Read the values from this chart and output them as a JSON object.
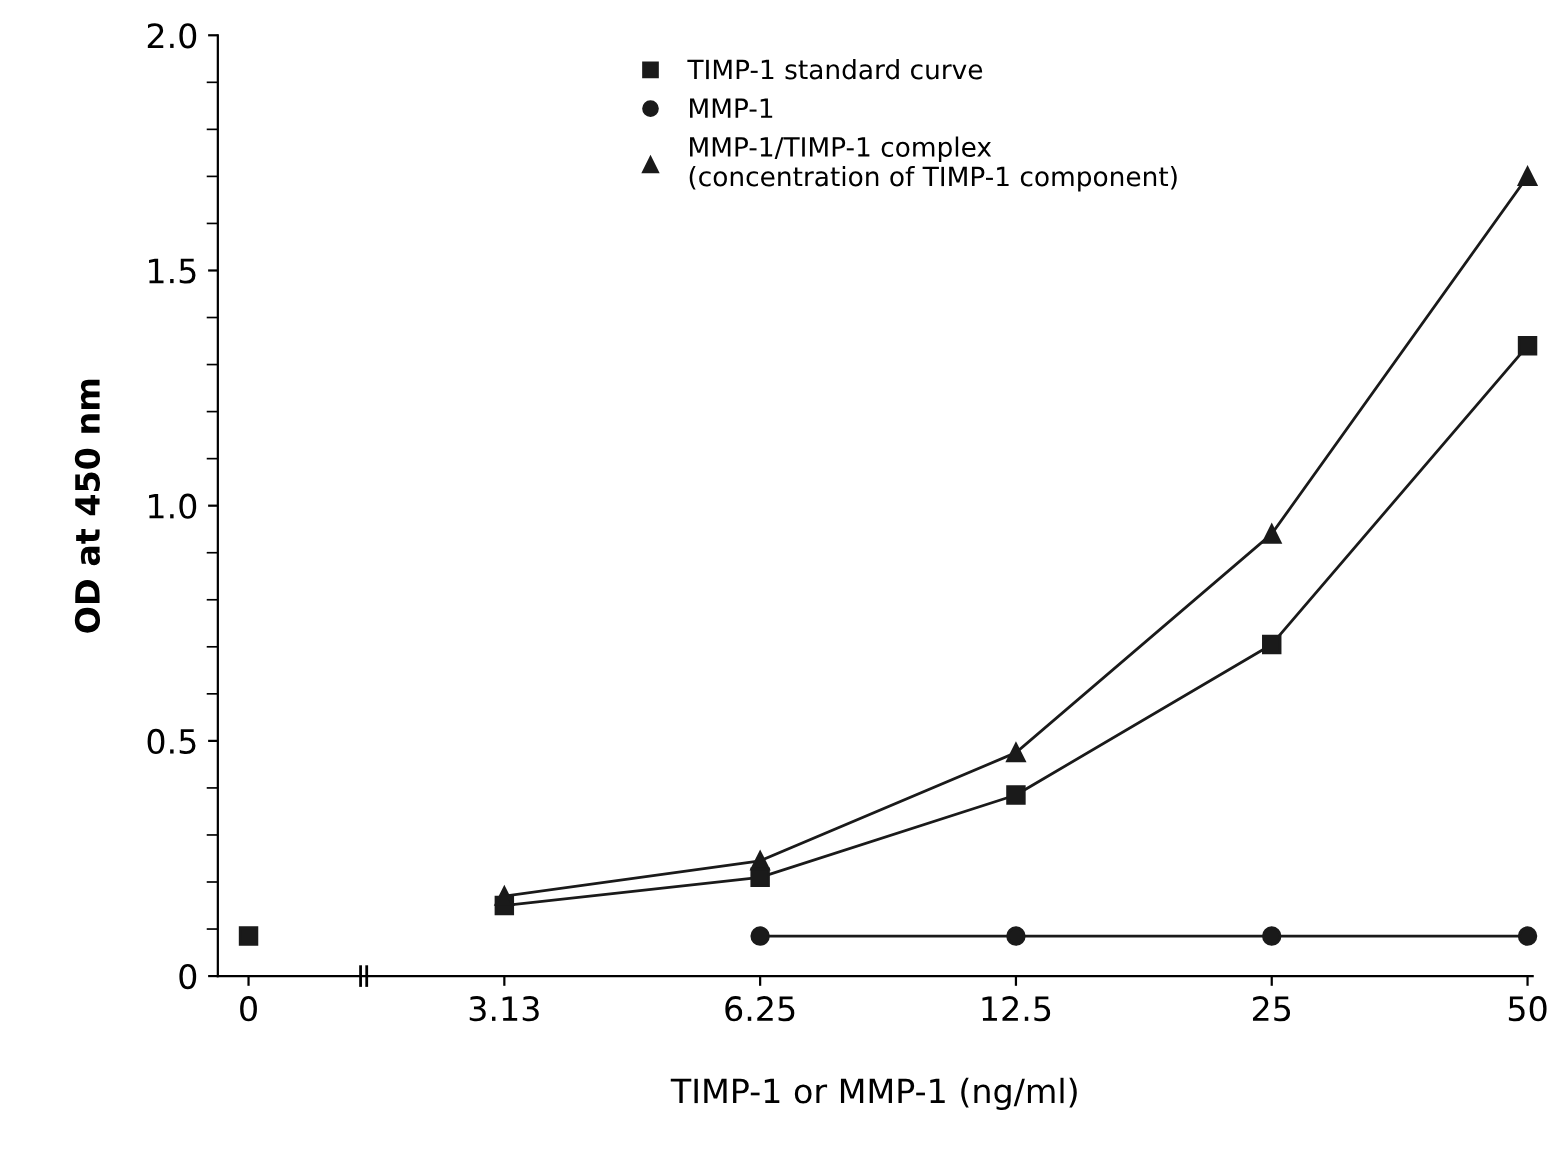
{
  "chart_data": {
    "type": "line",
    "xlabel": "TIMP-1 or MMP-1 (ng/ml)",
    "ylabel": "OD at 450 nm",
    "categories": [
      "0",
      "3.13",
      "6.25",
      "12.5",
      "25",
      "50"
    ],
    "ylim": [
      0,
      2.0
    ],
    "yticks": [
      0,
      {
        "value": 0.1,
        "label": null
      },
      {
        "value": 0.2,
        "label": null
      },
      {
        "value": 0.3,
        "label": null
      },
      {
        "value": 0.4,
        "label": null
      },
      {
        "value": 0.5,
        "label": "0.5"
      },
      {
        "value": 0.6,
        "label": null
      },
      {
        "value": 0.7,
        "label": null
      },
      {
        "value": 0.8,
        "label": null
      },
      {
        "value": 0.9,
        "label": null
      },
      {
        "value": 1.0,
        "label": "1.0"
      },
      {
        "value": 1.1,
        "label": null
      },
      {
        "value": 1.2,
        "label": null
      },
      {
        "value": 1.3,
        "label": null
      },
      {
        "value": 1.4,
        "label": null
      },
      {
        "value": 1.5,
        "label": "1.5"
      },
      {
        "value": 1.6,
        "label": null
      },
      {
        "value": 1.7,
        "label": null
      },
      {
        "value": 1.8,
        "label": null
      },
      {
        "value": 1.9,
        "label": null
      },
      {
        "value": 2.0,
        "label": "2.0"
      }
    ],
    "grid": false,
    "legend": "top",
    "series": [
      {
        "name": "TIMP-1 standard curve",
        "color": "#1a1a1a",
        "marker": "square",
        "values": [
          null,
          0.15,
          0.21,
          0.385,
          0.705,
          1.34
        ]
      },
      {
        "name": "MMP-1",
        "color": "#1a1a1a",
        "marker": "circle",
        "values": [
          null,
          null,
          0.085,
          0.085,
          0.085,
          0.085
        ]
      },
      {
        "name": "MMP-1/TIMP-1 complex\n(concentration of TIMP-1 component)",
        "color": "#1a1a1a",
        "marker": "triangle",
        "values": [
          null,
          0.17,
          0.245,
          0.475,
          0.94,
          1.7
        ]
      },
      {
        "type": "scatter",
        "color": "#1a1a1a",
        "marker": "square",
        "values": [
          0.085,
          null,
          null,
          null,
          null,
          null
        ]
      }
    ]
  }
}
